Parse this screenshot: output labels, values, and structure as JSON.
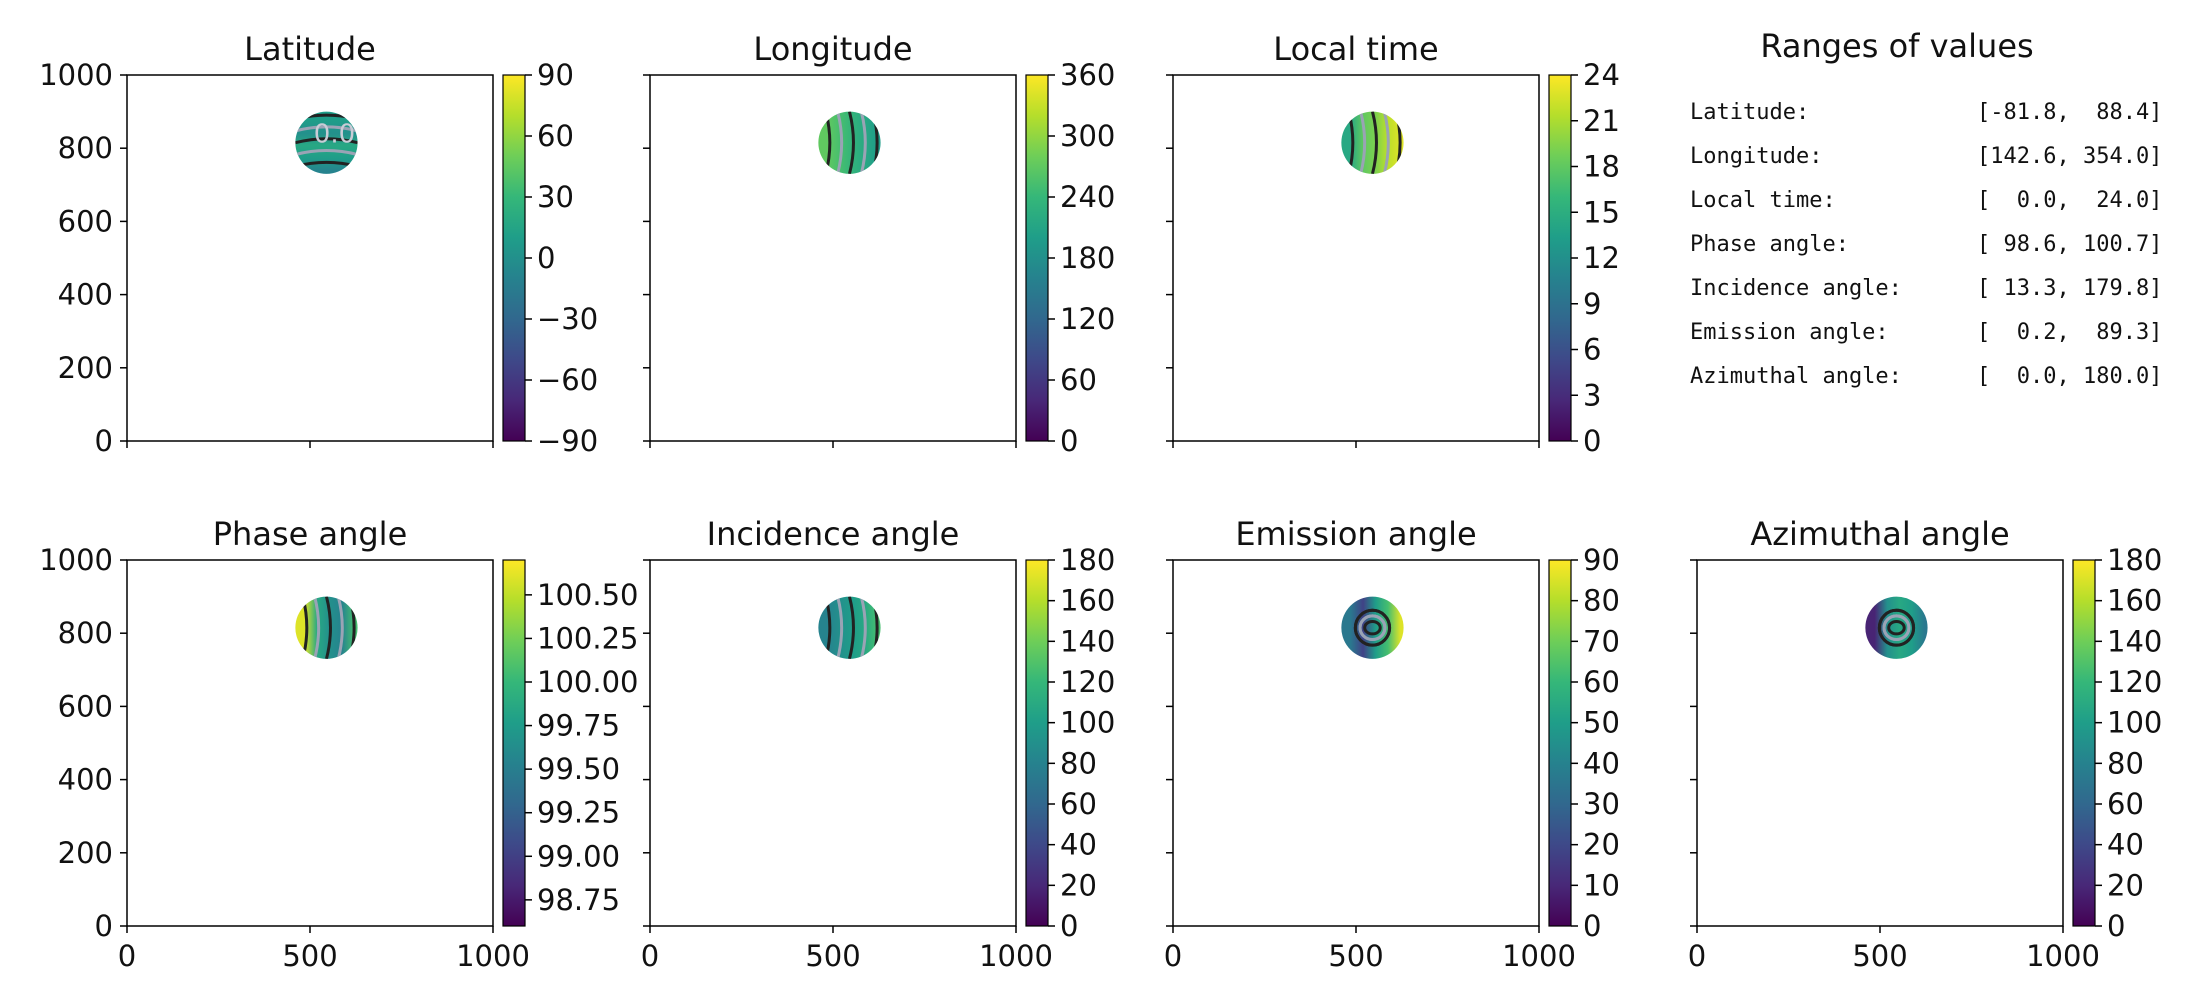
{
  "chart_data": [
    {
      "type": "heatmap",
      "title": "Latitude",
      "xlim": [
        0,
        1000
      ],
      "ylim": [
        0,
        1000
      ],
      "xticks": [],
      "yticks": [
        "0",
        "200",
        "400",
        "600",
        "800",
        "1000"
      ],
      "disk": {
        "cx": 545,
        "cy": 815,
        "r": 85
      },
      "colorbar": {
        "min": -90,
        "max": 90,
        "ticks": [
          -90,
          -60,
          -30,
          0,
          30,
          60,
          90
        ],
        "labels": [
          "−90",
          "−60",
          "−30",
          "0",
          "30",
          "60",
          "90"
        ]
      },
      "annotations": [
        "0.0"
      ]
    },
    {
      "type": "heatmap",
      "title": "Longitude",
      "xlim": [
        0,
        1000
      ],
      "ylim": [
        0,
        1000
      ],
      "xticks": [],
      "yticks": [],
      "disk": {
        "cx": 545,
        "cy": 815,
        "r": 85
      },
      "colorbar": {
        "min": 0,
        "max": 360,
        "ticks": [
          0,
          60,
          120,
          180,
          240,
          300,
          360
        ],
        "labels": [
          "0",
          "60",
          "120",
          "180",
          "240",
          "300",
          "360"
        ]
      }
    },
    {
      "type": "heatmap",
      "title": "Local time",
      "xlim": [
        0,
        1000
      ],
      "ylim": [
        0,
        1000
      ],
      "xticks": [],
      "yticks": [],
      "disk": {
        "cx": 545,
        "cy": 815,
        "r": 85
      },
      "colorbar": {
        "min": 0,
        "max": 24,
        "ticks": [
          0,
          3,
          6,
          9,
          12,
          15,
          18,
          21,
          24
        ],
        "labels": [
          "0",
          "3",
          "6",
          "9",
          "12",
          "15",
          "18",
          "21",
          "24"
        ]
      }
    },
    {
      "type": "heatmap",
      "title": "Phase angle",
      "xlim": [
        0,
        1000
      ],
      "ylim": [
        0,
        1000
      ],
      "xticks": [
        "0",
        "500",
        "1000"
      ],
      "yticks": [
        "0",
        "200",
        "400",
        "600",
        "800",
        "1000"
      ],
      "disk": {
        "cx": 545,
        "cy": 815,
        "r": 85
      },
      "colorbar": {
        "min": 98.6,
        "max": 100.7,
        "ticks": [
          98.75,
          99.0,
          99.25,
          99.5,
          99.75,
          100.0,
          100.25,
          100.5
        ],
        "labels": [
          "98.75",
          "99.00",
          "99.25",
          "99.50",
          "99.75",
          "100.00",
          "100.25",
          "100.50"
        ]
      }
    },
    {
      "type": "heatmap",
      "title": "Incidence angle",
      "xlim": [
        0,
        1000
      ],
      "ylim": [
        0,
        1000
      ],
      "xticks": [
        "0",
        "500",
        "1000"
      ],
      "yticks": [],
      "disk": {
        "cx": 545,
        "cy": 815,
        "r": 85
      },
      "colorbar": {
        "min": 0,
        "max": 180,
        "ticks": [
          0,
          20,
          40,
          60,
          80,
          100,
          120,
          140,
          160,
          180
        ],
        "labels": [
          "0",
          "20",
          "40",
          "60",
          "80",
          "100",
          "120",
          "140",
          "160",
          "180"
        ]
      }
    },
    {
      "type": "heatmap",
      "title": "Emission angle",
      "xlim": [
        0,
        1000
      ],
      "ylim": [
        0,
        1000
      ],
      "xticks": [
        "0",
        "500",
        "1000"
      ],
      "yticks": [],
      "disk": {
        "cx": 545,
        "cy": 815,
        "r": 85
      },
      "colorbar": {
        "min": 0,
        "max": 90,
        "ticks": [
          0,
          10,
          20,
          30,
          40,
          50,
          60,
          70,
          80,
          90
        ],
        "labels": [
          "0",
          "10",
          "20",
          "30",
          "40",
          "50",
          "60",
          "70",
          "80",
          "90"
        ]
      }
    },
    {
      "type": "heatmap",
      "title": "Azimuthal angle",
      "xlim": [
        0,
        1000
      ],
      "ylim": [
        0,
        1000
      ],
      "xticks": [
        "0",
        "500",
        "1000"
      ],
      "yticks": [],
      "disk": {
        "cx": 545,
        "cy": 815,
        "r": 85
      },
      "colorbar": {
        "min": 0,
        "max": 180,
        "ticks": [
          0,
          20,
          40,
          60,
          80,
          100,
          120,
          140,
          160,
          180
        ],
        "labels": [
          "0",
          "20",
          "40",
          "60",
          "80",
          "100",
          "120",
          "140",
          "160",
          "180"
        ]
      }
    }
  ],
  "ranges_panel": {
    "title": "Ranges of values",
    "rows": [
      {
        "label": "Latitude:",
        "range": "[-81.8,  88.4]"
      },
      {
        "label": "Longitude:",
        "range": "[142.6, 354.0]"
      },
      {
        "label": "Local time:",
        "range": "[  0.0,  24.0]"
      },
      {
        "label": "Phase angle:",
        "range": "[ 98.6, 100.7]"
      },
      {
        "label": "Incidence angle:",
        "range": "[ 13.3, 179.8]"
      },
      {
        "label": "Emission angle:",
        "range": "[  0.2,  89.3]"
      },
      {
        "label": "Azimuthal angle:",
        "range": "[  0.0, 180.0]"
      }
    ]
  }
}
